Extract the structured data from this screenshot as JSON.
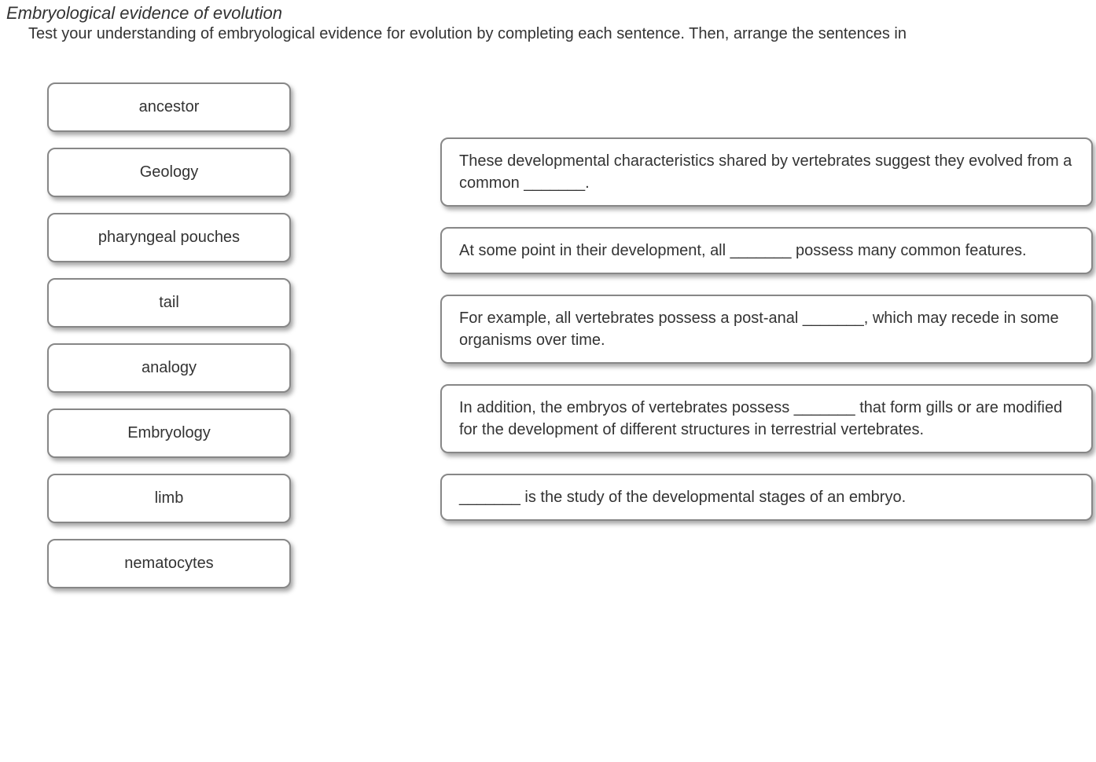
{
  "header": {
    "title": "Embryological evidence of evolution",
    "instructions": "Test your understanding of embryological evidence for evolution by completing each sentence.  Then, arrange the sentences in"
  },
  "wordBank": {
    "items": [
      {
        "label": "ancestor"
      },
      {
        "label": "Geology"
      },
      {
        "label": "pharyngeal pouches"
      },
      {
        "label": "tail"
      },
      {
        "label": "analogy"
      },
      {
        "label": "Embryology"
      },
      {
        "label": "limb"
      },
      {
        "label": "nematocytes"
      }
    ]
  },
  "sentences": {
    "items": [
      {
        "text": "These developmental characteristics shared by vertebrates suggest they evolved from a common _______."
      },
      {
        "text": "At some point in their development, all _______ possess many common features."
      },
      {
        "text": "For example, all vertebrates possess a post-anal _______, which may recede in some organisms over time."
      },
      {
        "text": "In addition, the embryos of vertebrates possess   _______ that form gills or are modified for the development of different structures in terrestrial vertebrates."
      },
      {
        "text": "_______ is the study of the developmental stages of an embryo."
      }
    ]
  },
  "styles": {
    "background_color": "#ffffff",
    "text_color": "#333333",
    "border_color": "#878787",
    "border_radius": 10,
    "shadow_color": "rgba(0,0,0,0.35)",
    "title_fontsize": 22,
    "body_fontsize": 20
  }
}
